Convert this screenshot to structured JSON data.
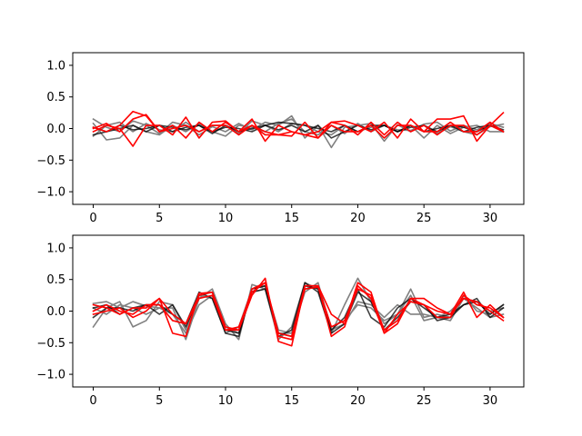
{
  "chart_data": [
    {
      "type": "line",
      "ylim": [
        -1.2,
        1.2
      ],
      "xlim": [
        -1.55,
        32.55
      ],
      "xticks": [
        "0",
        "5",
        "10",
        "15",
        "20",
        "25",
        "30"
      ],
      "yticks": [
        "−1.0",
        "−0.5",
        "0.0",
        "0.5",
        "1.0"
      ],
      "grid": false,
      "x": [
        0,
        1,
        2,
        3,
        4,
        5,
        6,
        7,
        8,
        9,
        10,
        11,
        12,
        13,
        14,
        15,
        16,
        17,
        18,
        19,
        20,
        21,
        22,
        23,
        24,
        25,
        26,
        27,
        28,
        29,
        30,
        31
      ],
      "series": [
        {
          "color": "#808080",
          "values": [
            0.15,
            0.02,
            -0.05,
            0.12,
            0.05,
            -0.08,
            0.1,
            0.05,
            -0.1,
            0.03,
            -0.05,
            0.08,
            -0.02,
            0.1,
            0.05,
            0.2,
            -0.15,
            0.05,
            -0.3,
            0.02,
            0.05,
            0.08,
            -0.2,
            0.06,
            -0.05,
            0.07,
            0.1,
            -0.04,
            0.05,
            -0.02,
            0.08,
            0.02
          ]
        },
        {
          "color": "#808080",
          "values": [
            0.08,
            -0.18,
            -0.15,
            0.05,
            -0.05,
            -0.1,
            0.05,
            -0.05,
            0.08,
            -0.05,
            -0.12,
            0.05,
            0.02,
            -0.05,
            0.08,
            0.15,
            -0.05,
            -0.1,
            0.05,
            -0.08,
            0.08,
            -0.05,
            0.05,
            -0.02,
            -0.03,
            0.05,
            -0.08,
            0.03,
            -0.05,
            -0.1,
            0.03,
            0.07
          ]
        },
        {
          "color": "#808080",
          "values": [
            -0.12,
            0.05,
            0.1,
            -0.05,
            0.08,
            -0.02,
            -0.05,
            0.1,
            -0.05,
            0.05,
            0.05,
            -0.08,
            0.12,
            0.05,
            -0.05,
            0.08,
            0.05,
            -0.05,
            -0.1,
            0.05,
            -0.05,
            0.02,
            0.05,
            -0.05,
            0.05,
            -0.15,
            0.05,
            -0.08,
            0.02,
            0.05,
            -0.05,
            -0.05
          ]
        },
        {
          "color": "#000000",
          "values": [
            -0.1,
            -0.05,
            0.0,
            0.05,
            -0.05,
            0.05,
            0.02,
            -0.02,
            0.05,
            -0.08,
            0.05,
            -0.05,
            0.0,
            0.05,
            0.1,
            0.08,
            0.05,
            0.0,
            -0.05,
            0.05,
            -0.05,
            0.05,
            0.05,
            -0.05,
            0.05,
            -0.05,
            0.0,
            0.05,
            -0.05,
            0.02,
            0.05,
            -0.05
          ]
        },
        {
          "color": "#000000",
          "values": [
            0.02,
            -0.05,
            0.05,
            -0.02,
            0.0,
            0.05,
            -0.05,
            0.02,
            0.05,
            -0.05,
            0.02,
            0.0,
            -0.05,
            0.05,
            -0.02,
            0.05,
            -0.05,
            0.05,
            -0.15,
            -0.05,
            0.05,
            -0.02,
            0.05,
            -0.05,
            0.02,
            0.05,
            -0.05,
            0.05,
            0.02,
            -0.05,
            0.05,
            -0.02
          ]
        },
        {
          "color": "#ff0000",
          "values": [
            0.02,
            -0.05,
            0.05,
            0.27,
            0.2,
            -0.05,
            0.05,
            -0.15,
            0.1,
            -0.05,
            0.1,
            -0.05,
            0.05,
            -0.05,
            -0.1,
            -0.12,
            0.1,
            -0.15,
            0.1,
            0.12,
            0.05,
            -0.05,
            0.1,
            -0.15,
            0.15,
            -0.05,
            0.15,
            0.15,
            0.2,
            -0.2,
            0.05,
            0.25
          ]
        },
        {
          "color": "#ff0000",
          "values": [
            -0.05,
            0.05,
            0.0,
            -0.28,
            0.05,
            0.05,
            -0.1,
            0.18,
            -0.15,
            0.1,
            0.12,
            -0.05,
            0.15,
            -0.2,
            0.05,
            -0.05,
            -0.1,
            -0.05,
            0.1,
            0.05,
            -0.1,
            0.1,
            -0.1,
            0.1,
            -0.05,
            0.05,
            -0.1,
            0.05,
            0.05,
            -0.1,
            0.05,
            -0.05
          ]
        },
        {
          "color": "#ff0000",
          "values": [
            0.0,
            0.08,
            -0.05,
            0.15,
            0.22,
            -0.05,
            0.0,
            0.05,
            -0.05,
            0.05,
            0.05,
            -0.1,
            0.05,
            -0.1,
            -0.1,
            -0.05,
            -0.1,
            -0.15,
            0.05,
            -0.05,
            -0.05,
            0.05,
            -0.15,
            0.05,
            0.05,
            -0.05,
            -0.05,
            0.1,
            -0.05,
            -0.05,
            0.1,
            -0.05
          ]
        }
      ]
    },
    {
      "type": "line",
      "ylim": [
        -1.2,
        1.2
      ],
      "xlim": [
        -1.55,
        32.55
      ],
      "xticks": [
        "0",
        "5",
        "10",
        "15",
        "20",
        "25",
        "30"
      ],
      "yticks": [
        "−1.0",
        "−0.5",
        "0.0",
        "0.5",
        "1.0"
      ],
      "grid": false,
      "x": [
        0,
        1,
        2,
        3,
        4,
        5,
        6,
        7,
        8,
        9,
        10,
        11,
        12,
        13,
        14,
        15,
        16,
        17,
        18,
        19,
        20,
        21,
        22,
        23,
        24,
        25,
        26,
        27,
        28,
        29,
        30,
        31
      ],
      "series": [
        {
          "color": "#808080",
          "values": [
            0.12,
            0.15,
            0.05,
            0.15,
            0.08,
            0.05,
            0.05,
            -0.45,
            0.2,
            0.35,
            -0.2,
            -0.45,
            0.42,
            0.35,
            -0.45,
            -0.25,
            0.45,
            0.35,
            -0.35,
            0.1,
            0.52,
            0.15,
            -0.2,
            -0.05,
            0.35,
            -0.1,
            -0.05,
            -0.1,
            0.25,
            0.0,
            -0.05,
            0.1
          ]
        },
        {
          "color": "#808080",
          "values": [
            -0.25,
            0.05,
            0.15,
            -0.25,
            -0.15,
            0.15,
            0.1,
            -0.3,
            0.25,
            0.2,
            -0.35,
            -0.25,
            0.35,
            0.4,
            -0.3,
            -0.35,
            0.35,
            0.4,
            -0.25,
            -0.15,
            0.1,
            0.05,
            -0.15,
            -0.05,
            0.25,
            -0.15,
            -0.1,
            -0.15,
            0.2,
            0.05,
            -0.1,
            -0.05
          ]
        },
        {
          "color": "#808080",
          "values": [
            0.05,
            -0.05,
            0.1,
            0.05,
            -0.05,
            0.05,
            -0.05,
            -0.35,
            0.1,
            0.25,
            -0.25,
            -0.35,
            0.3,
            0.35,
            -0.35,
            -0.35,
            0.3,
            0.45,
            -0.3,
            -0.2,
            0.15,
            0.1,
            -0.1,
            0.1,
            -0.05,
            -0.05,
            -0.1,
            0.0,
            0.2,
            0.15,
            0.0,
            0.05
          ]
        },
        {
          "color": "#000000",
          "values": [
            0.05,
            0.1,
            -0.05,
            0.05,
            0.1,
            0.1,
            -0.05,
            -0.2,
            0.3,
            0.2,
            -0.35,
            -0.4,
            0.35,
            0.4,
            -0.35,
            -0.4,
            0.4,
            0.35,
            -0.3,
            -0.1,
            0.35,
            -0.1,
            -0.25,
            0.05,
            0.2,
            0.05,
            -0.1,
            -0.05,
            0.1,
            0.15,
            -0.05,
            0.1
          ]
        },
        {
          "color": "#000000",
          "values": [
            -0.1,
            0.05,
            0.05,
            0.0,
            0.1,
            -0.05,
            0.1,
            -0.25,
            0.25,
            0.3,
            -0.3,
            -0.35,
            0.3,
            0.35,
            -0.4,
            -0.3,
            0.45,
            0.3,
            -0.35,
            -0.2,
            0.3,
            0.15,
            -0.3,
            -0.1,
            0.15,
            0.1,
            -0.15,
            -0.1,
            0.1,
            0.2,
            -0.1,
            0.05
          ]
        },
        {
          "color": "#ff0000",
          "values": [
            0.1,
            0.05,
            -0.05,
            0.05,
            0.05,
            0.2,
            -0.05,
            -0.2,
            0.2,
            0.25,
            -0.3,
            -0.3,
            0.25,
            0.52,
            -0.48,
            -0.55,
            0.4,
            0.4,
            -0.05,
            -0.2,
            0.45,
            0.3,
            -0.35,
            -0.05,
            0.15,
            0.1,
            0.0,
            -0.05,
            0.3,
            -0.1,
            0.1,
            -0.1
          ]
        },
        {
          "color": "#ff0000",
          "values": [
            0.0,
            0.1,
            0.0,
            -0.05,
            0.1,
            0.1,
            -0.15,
            -0.2,
            0.25,
            0.3,
            -0.25,
            -0.3,
            0.35,
            0.45,
            -0.35,
            -0.4,
            0.4,
            0.4,
            -0.4,
            -0.25,
            0.4,
            0.2,
            -0.35,
            -0.2,
            0.2,
            0.1,
            -0.1,
            -0.1,
            0.25,
            0.1,
            0.05,
            -0.1
          ]
        },
        {
          "color": "#ff0000",
          "values": [
            -0.05,
            0.0,
            0.05,
            -0.1,
            0.0,
            0.2,
            -0.35,
            -0.4,
            0.28,
            0.3,
            -0.3,
            -0.25,
            0.3,
            0.45,
            -0.4,
            -0.45,
            0.35,
            0.38,
            -0.25,
            -0.15,
            0.35,
            0.25,
            -0.3,
            -0.15,
            0.2,
            0.2,
            0.05,
            -0.05,
            0.2,
            0.15,
            0.0,
            -0.15
          ]
        }
      ]
    }
  ]
}
